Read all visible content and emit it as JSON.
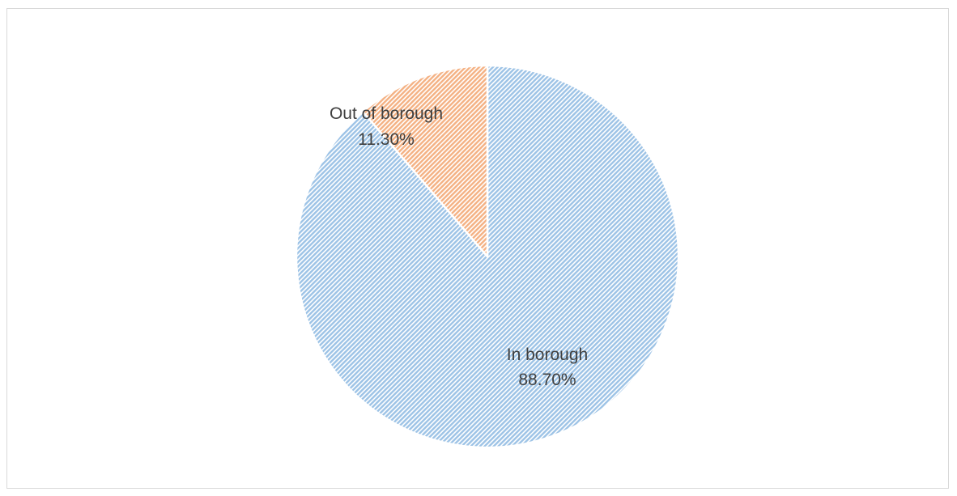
{
  "chart_data": {
    "type": "pie",
    "title": "",
    "slices": [
      {
        "label": "In borough",
        "value": 88.7,
        "value_label": "88.70%",
        "color": "#9dc3e6"
      },
      {
        "label": "Out of borough",
        "value": 11.3,
        "value_label": "11.30%",
        "color": "#f4b183"
      }
    ],
    "start_angle_deg": 0,
    "direction": "clockwise",
    "fill_pattern": "diagonal-hatch",
    "legend": "none"
  }
}
